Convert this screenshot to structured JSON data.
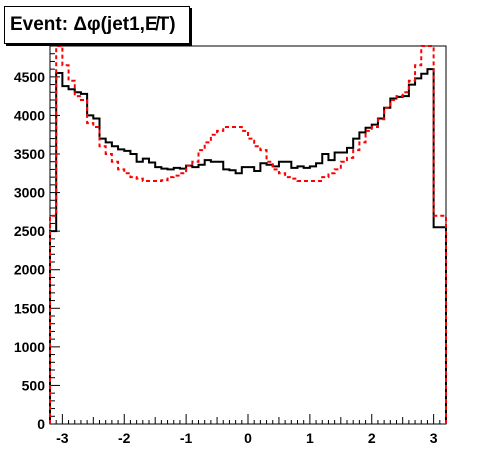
{
  "chart_data": {
    "type": "line",
    "title": "Event: Δφ(jet1,E̸T)",
    "xlim": [
      -3.2,
      3.2
    ],
    "ylim": [
      0,
      4900
    ],
    "x_ticks": [
      -3,
      -2,
      -1,
      0,
      1,
      2,
      3
    ],
    "x_tick_labels": [
      "-3",
      "-2",
      "-1",
      "0",
      "1",
      "2",
      "3"
    ],
    "y_ticks": [
      0,
      500,
      1000,
      1500,
      2000,
      2500,
      3000,
      3500,
      4000,
      4500
    ],
    "y_tick_labels": [
      "0",
      "500",
      "1000",
      "1500",
      "2000",
      "2500",
      "3000",
      "3500",
      "4000",
      "4500"
    ],
    "bin_edges_range": [
      -3.2,
      3.2
    ],
    "n_bins": 64,
    "grid": false,
    "series": [
      {
        "color": "#000000",
        "style": "solid",
        "values": [
          2500,
          4550,
          4380,
          4340,
          4300,
          4280,
          4000,
          3960,
          3700,
          3650,
          3600,
          3560,
          3540,
          3500,
          3400,
          3440,
          3390,
          3330,
          3310,
          3300,
          3320,
          3310,
          3350,
          3330,
          3360,
          3420,
          3400,
          3400,
          3300,
          3290,
          3250,
          3330,
          3330,
          3280,
          3380,
          3360,
          3340,
          3400,
          3400,
          3320,
          3340,
          3320,
          3340,
          3380,
          3500,
          3420,
          3520,
          3520,
          3580,
          3700,
          3780,
          3840,
          3880,
          3960,
          4100,
          4220,
          4240,
          4250,
          4400,
          4480,
          4540,
          4600,
          2550,
          2550
        ]
      },
      {
        "color": "#ff0000",
        "style": "dashed",
        "values": [
          2700,
          4900,
          4650,
          4450,
          4250,
          4200,
          3900,
          3850,
          3600,
          3500,
          3400,
          3300,
          3250,
          3200,
          3180,
          3150,
          3150,
          3150,
          3160,
          3200,
          3220,
          3250,
          3350,
          3400,
          3550,
          3650,
          3750,
          3800,
          3850,
          3850,
          3850,
          3800,
          3700,
          3600,
          3550,
          3400,
          3300,
          3250,
          3200,
          3180,
          3150,
          3150,
          3150,
          3150,
          3200,
          3250,
          3300,
          3400,
          3450,
          3550,
          3650,
          3800,
          3850,
          3950,
          4100,
          4200,
          4250,
          4300,
          4450,
          4650,
          4900,
          4900,
          2700,
          2700
        ]
      }
    ]
  }
}
